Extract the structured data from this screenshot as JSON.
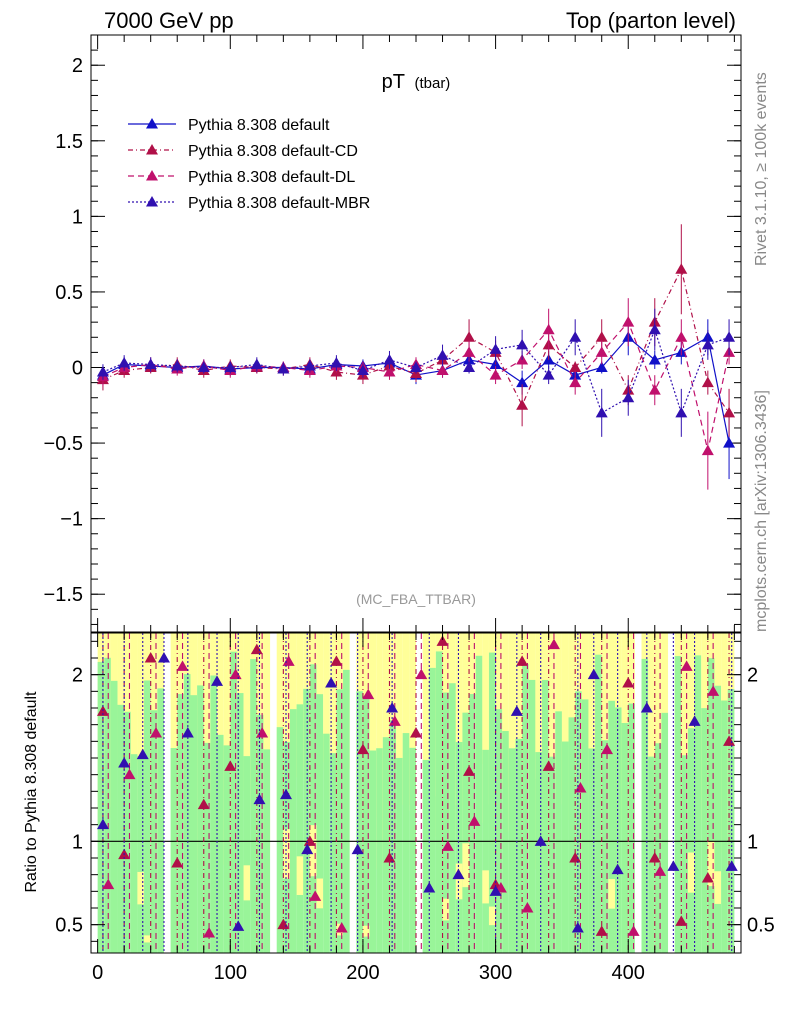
{
  "header": {
    "left": "7000 GeV pp",
    "right": "Top (parton level)"
  },
  "side": {
    "top": "Rivet 3.1.10, ≥ 100k events",
    "bottom": "mcplots.cern.ch [arXiv:1306.3436]"
  },
  "chart_data": [
    {
      "type": "line",
      "title": "pT",
      "subtitle": "(tbar)",
      "annotation": "(MC_FBA_TTBAR)",
      "xlabel": "",
      "ylabel": "",
      "xlim": [
        -5,
        485
      ],
      "ylim": [
        -1.75,
        2.2
      ],
      "yticks": [
        -1.5,
        -1,
        -0.5,
        0,
        0.5,
        1,
        1.5,
        2
      ],
      "ytick_labels": [
        "−1.5",
        "−1",
        "−0.5",
        "0",
        "0.5",
        "1",
        "1.5",
        "2"
      ],
      "series": [
        {
          "name": "Pythia 8.308 default",
          "color": "#1010c8",
          "dash": "",
          "x": [
            4,
            20,
            40,
            60,
            80,
            100,
            120,
            140,
            160,
            180,
            200,
            220,
            240,
            260,
            280,
            300,
            320,
            340,
            360,
            380,
            400,
            420,
            440,
            460,
            476
          ],
          "y": [
            -0.05,
            0.02,
            0.01,
            0.0,
            0.01,
            -0.01,
            0.0,
            0.0,
            -0.01,
            0.02,
            0.01,
            0.03,
            -0.05,
            -0.02,
            0.05,
            0.02,
            -0.1,
            0.05,
            -0.05,
            0.0,
            0.2,
            0.05,
            0.1,
            0.2,
            -0.5
          ]
        },
        {
          "name": "Pythia 8.308 default-CD",
          "color": "#b01048",
          "dash": "5,3,1,3",
          "x": [
            4,
            20,
            40,
            60,
            80,
            100,
            120,
            140,
            160,
            180,
            200,
            220,
            240,
            260,
            280,
            300,
            320,
            340,
            360,
            380,
            400,
            420,
            440,
            460,
            476
          ],
          "y": [
            -0.08,
            -0.02,
            0.0,
            0.02,
            -0.02,
            0.01,
            0.0,
            -0.01,
            0.02,
            -0.03,
            -0.05,
            0.01,
            -0.04,
            0.05,
            0.2,
            0.1,
            -0.25,
            0.15,
            0.0,
            0.2,
            -0.15,
            0.3,
            0.65,
            -0.1,
            -0.3
          ]
        },
        {
          "name": "Pythia 8.308 default-DL",
          "color": "#c0106c",
          "dash": "6,4",
          "x": [
            4,
            20,
            40,
            60,
            80,
            100,
            120,
            140,
            160,
            180,
            200,
            220,
            240,
            260,
            280,
            300,
            320,
            340,
            360,
            380,
            400,
            420,
            440,
            460,
            476
          ],
          "y": [
            -0.06,
            0.0,
            0.02,
            -0.01,
            0.01,
            -0.02,
            0.01,
            0.0,
            -0.02,
            0.01,
            0.0,
            -0.03,
            0.02,
            -0.02,
            0.1,
            -0.05,
            0.05,
            0.25,
            -0.1,
            0.1,
            0.3,
            -0.15,
            0.2,
            -0.55,
            0.1
          ]
        },
        {
          "name": "Pythia 8.308 default-MBR",
          "color": "#3010b0",
          "dash": "2,2",
          "x": [
            4,
            20,
            40,
            60,
            80,
            100,
            120,
            140,
            160,
            180,
            200,
            220,
            240,
            260,
            280,
            300,
            320,
            340,
            360,
            380,
            400,
            420,
            440,
            460,
            476
          ],
          "y": [
            -0.03,
            0.03,
            0.02,
            0.01,
            0.0,
            0.0,
            0.02,
            -0.01,
            0.01,
            0.03,
            -0.02,
            0.05,
            0.0,
            0.08,
            0.0,
            0.12,
            0.15,
            -0.05,
            0.2,
            -0.3,
            -0.2,
            0.25,
            -0.3,
            0.15,
            0.2
          ]
        }
      ]
    },
    {
      "type": "line",
      "title": "",
      "xlabel": "",
      "ylabel": "Ratio to Pythia 8.308 default",
      "xlim": [
        -5,
        485
      ],
      "ylim": [
        0.33,
        2.25
      ],
      "xticks": [
        0,
        100,
        200,
        300,
        400
      ],
      "xtick_labels": [
        "0",
        "100",
        "200",
        "300",
        "400"
      ],
      "yticks": [
        0.5,
        1,
        2
      ],
      "ytick_labels": [
        "0.5",
        "1",
        "2"
      ],
      "reference_line": 1,
      "series": [
        {
          "name": "Pythia 8.308 default-CD",
          "color": "#b01048",
          "dash": "5,3,1,3",
          "x": [
            4,
            20,
            40,
            60,
            80,
            100,
            120,
            140,
            160,
            180,
            200,
            220,
            240,
            260,
            280,
            300,
            320,
            340,
            360,
            380,
            400,
            420,
            440,
            460,
            476
          ],
          "y": [
            1.78,
            0.92,
            2.1,
            0.87,
            1.22,
            1.45,
            2.15,
            0.5,
            1.0,
            2.08,
            1.55,
            0.9,
            1.65,
            2.2,
            1.42,
            0.74,
            2.08,
            1.45,
            0.9,
            0.46,
            1.95,
            0.9,
            0.52,
            0.78,
            1.6
          ]
        },
        {
          "name": "Pythia 8.308 default-DL",
          "color": "#c0106c",
          "dash": "6,4",
          "x": [
            8,
            24,
            44,
            64,
            84,
            104,
            124,
            144,
            164,
            184,
            204,
            224,
            244,
            264,
            284,
            304,
            324,
            344,
            364,
            384,
            404,
            424,
            444,
            464
          ],
          "y": [
            0.74,
            1.4,
            1.65,
            2.05,
            0.45,
            2.0,
            1.65,
            2.08,
            0.67,
            0.48,
            1.88,
            1.72,
            2.0,
            0.97,
            1.12,
            0.72,
            0.6,
            2.18,
            1.32,
            1.55,
            0.46,
            0.82,
            2.05,
            1.9
          ]
        },
        {
          "name": "Pythia 8.308 default-MBR",
          "color": "#3010b0",
          "dash": "2,2",
          "x": [
            4,
            20,
            34,
            50,
            68,
            90,
            106,
            122,
            142,
            158,
            176,
            196,
            222,
            250,
            272,
            300,
            316,
            334,
            362,
            374,
            392,
            414,
            434,
            450,
            478
          ],
          "y": [
            1.1,
            1.47,
            1.52,
            2.1,
            1.65,
            1.96,
            0.49,
            1.25,
            1.28,
            0.95,
            1.95,
            0.95,
            1.8,
            0.72,
            0.8,
            0.7,
            1.78,
            1.0,
            0.48,
            2.0,
            0.83,
            1.8,
            0.85,
            1.72,
            0.85
          ]
        }
      ]
    }
  ]
}
